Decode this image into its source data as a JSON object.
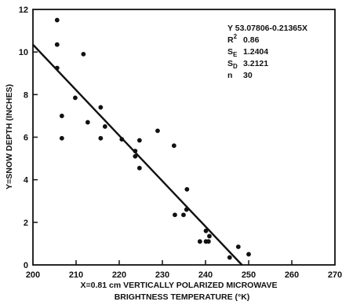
{
  "chart_data": {
    "type": "scatter",
    "xlabel_line1": "X=0.81 cm VERTICALLY POLARIZED MICROWAVE",
    "xlabel_line2": "BRIGHTNESS TEMPERATURE (°K)",
    "ylabel": "Y=SNOW DEPTH (INCHES)",
    "xlim": [
      200,
      270
    ],
    "ylim": [
      0,
      12
    ],
    "x_ticks": [
      "200",
      "210",
      "220",
      "230",
      "240",
      "250",
      "260",
      "270"
    ],
    "y_ticks": [
      "0",
      "2",
      "4",
      "6",
      "8",
      "10",
      "12"
    ],
    "grid": false,
    "points": [
      {
        "x": 205.6,
        "y": 11.5
      },
      {
        "x": 205.6,
        "y": 10.35
      },
      {
        "x": 205.6,
        "y": 9.25
      },
      {
        "x": 211.7,
        "y": 9.9
      },
      {
        "x": 209.8,
        "y": 7.85
      },
      {
        "x": 206.7,
        "y": 7.0
      },
      {
        "x": 206.7,
        "y": 5.95
      },
      {
        "x": 212.7,
        "y": 6.7
      },
      {
        "x": 215.7,
        "y": 7.4
      },
      {
        "x": 216.7,
        "y": 6.5
      },
      {
        "x": 215.7,
        "y": 5.95
      },
      {
        "x": 220.6,
        "y": 5.9
      },
      {
        "x": 223.7,
        "y": 5.35
      },
      {
        "x": 223.7,
        "y": 5.1
      },
      {
        "x": 224.7,
        "y": 5.85
      },
      {
        "x": 224.7,
        "y": 4.55
      },
      {
        "x": 228.9,
        "y": 6.3
      },
      {
        "x": 232.7,
        "y": 5.6
      },
      {
        "x": 232.9,
        "y": 2.35
      },
      {
        "x": 234.9,
        "y": 2.35
      },
      {
        "x": 235.7,
        "y": 3.55
      },
      {
        "x": 235.6,
        "y": 2.6
      },
      {
        "x": 238.7,
        "y": 1.1
      },
      {
        "x": 240.1,
        "y": 1.1
      },
      {
        "x": 240.7,
        "y": 1.1
      },
      {
        "x": 240.1,
        "y": 1.6
      },
      {
        "x": 240.9,
        "y": 1.35
      },
      {
        "x": 245.6,
        "y": 0.35
      },
      {
        "x": 247.6,
        "y": 0.85
      },
      {
        "x": 250.0,
        "y": 0.5
      }
    ],
    "regression": {
      "intercept": 53.07806,
      "slope": -0.21365,
      "x_range": [
        200,
        248.5
      ]
    },
    "stats": {
      "line1": "Y 53.07806-0.21365X",
      "r_label": "R",
      "r_sup": "2",
      "r_value": "0.86",
      "se_label": "S",
      "se_sub": "E",
      "se_value": "1.2404",
      "sd_label": "S",
      "sd_sub": "D",
      "sd_value": "3.2121",
      "n_label": "n",
      "n_value": "30"
    }
  }
}
